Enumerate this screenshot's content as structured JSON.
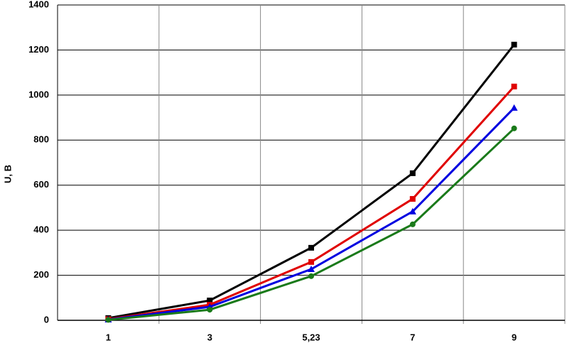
{
  "chart_data": {
    "type": "line",
    "y_label": "U, В",
    "categories": [
      "1",
      "3",
      "5,23",
      "7",
      "9"
    ],
    "series": [
      {
        "color": "#000000",
        "marker": "square",
        "values": [
          10,
          88,
          322,
          653,
          1224
        ]
      },
      {
        "color": "#e00000",
        "marker": "square",
        "values": [
          5,
          69,
          259,
          539,
          1038
        ]
      },
      {
        "color": "#0000e0",
        "marker": "triangle",
        "values": [
          3,
          60,
          227,
          483,
          943
        ]
      },
      {
        "color": "#1a7a1a",
        "marker": "circle",
        "values": [
          2,
          47,
          196,
          426,
          852
        ]
      }
    ],
    "ylim": [
      0,
      1400
    ],
    "yticks": [
      0,
      200,
      400,
      600,
      800,
      1000,
      1200,
      1400
    ],
    "grid": true
  }
}
